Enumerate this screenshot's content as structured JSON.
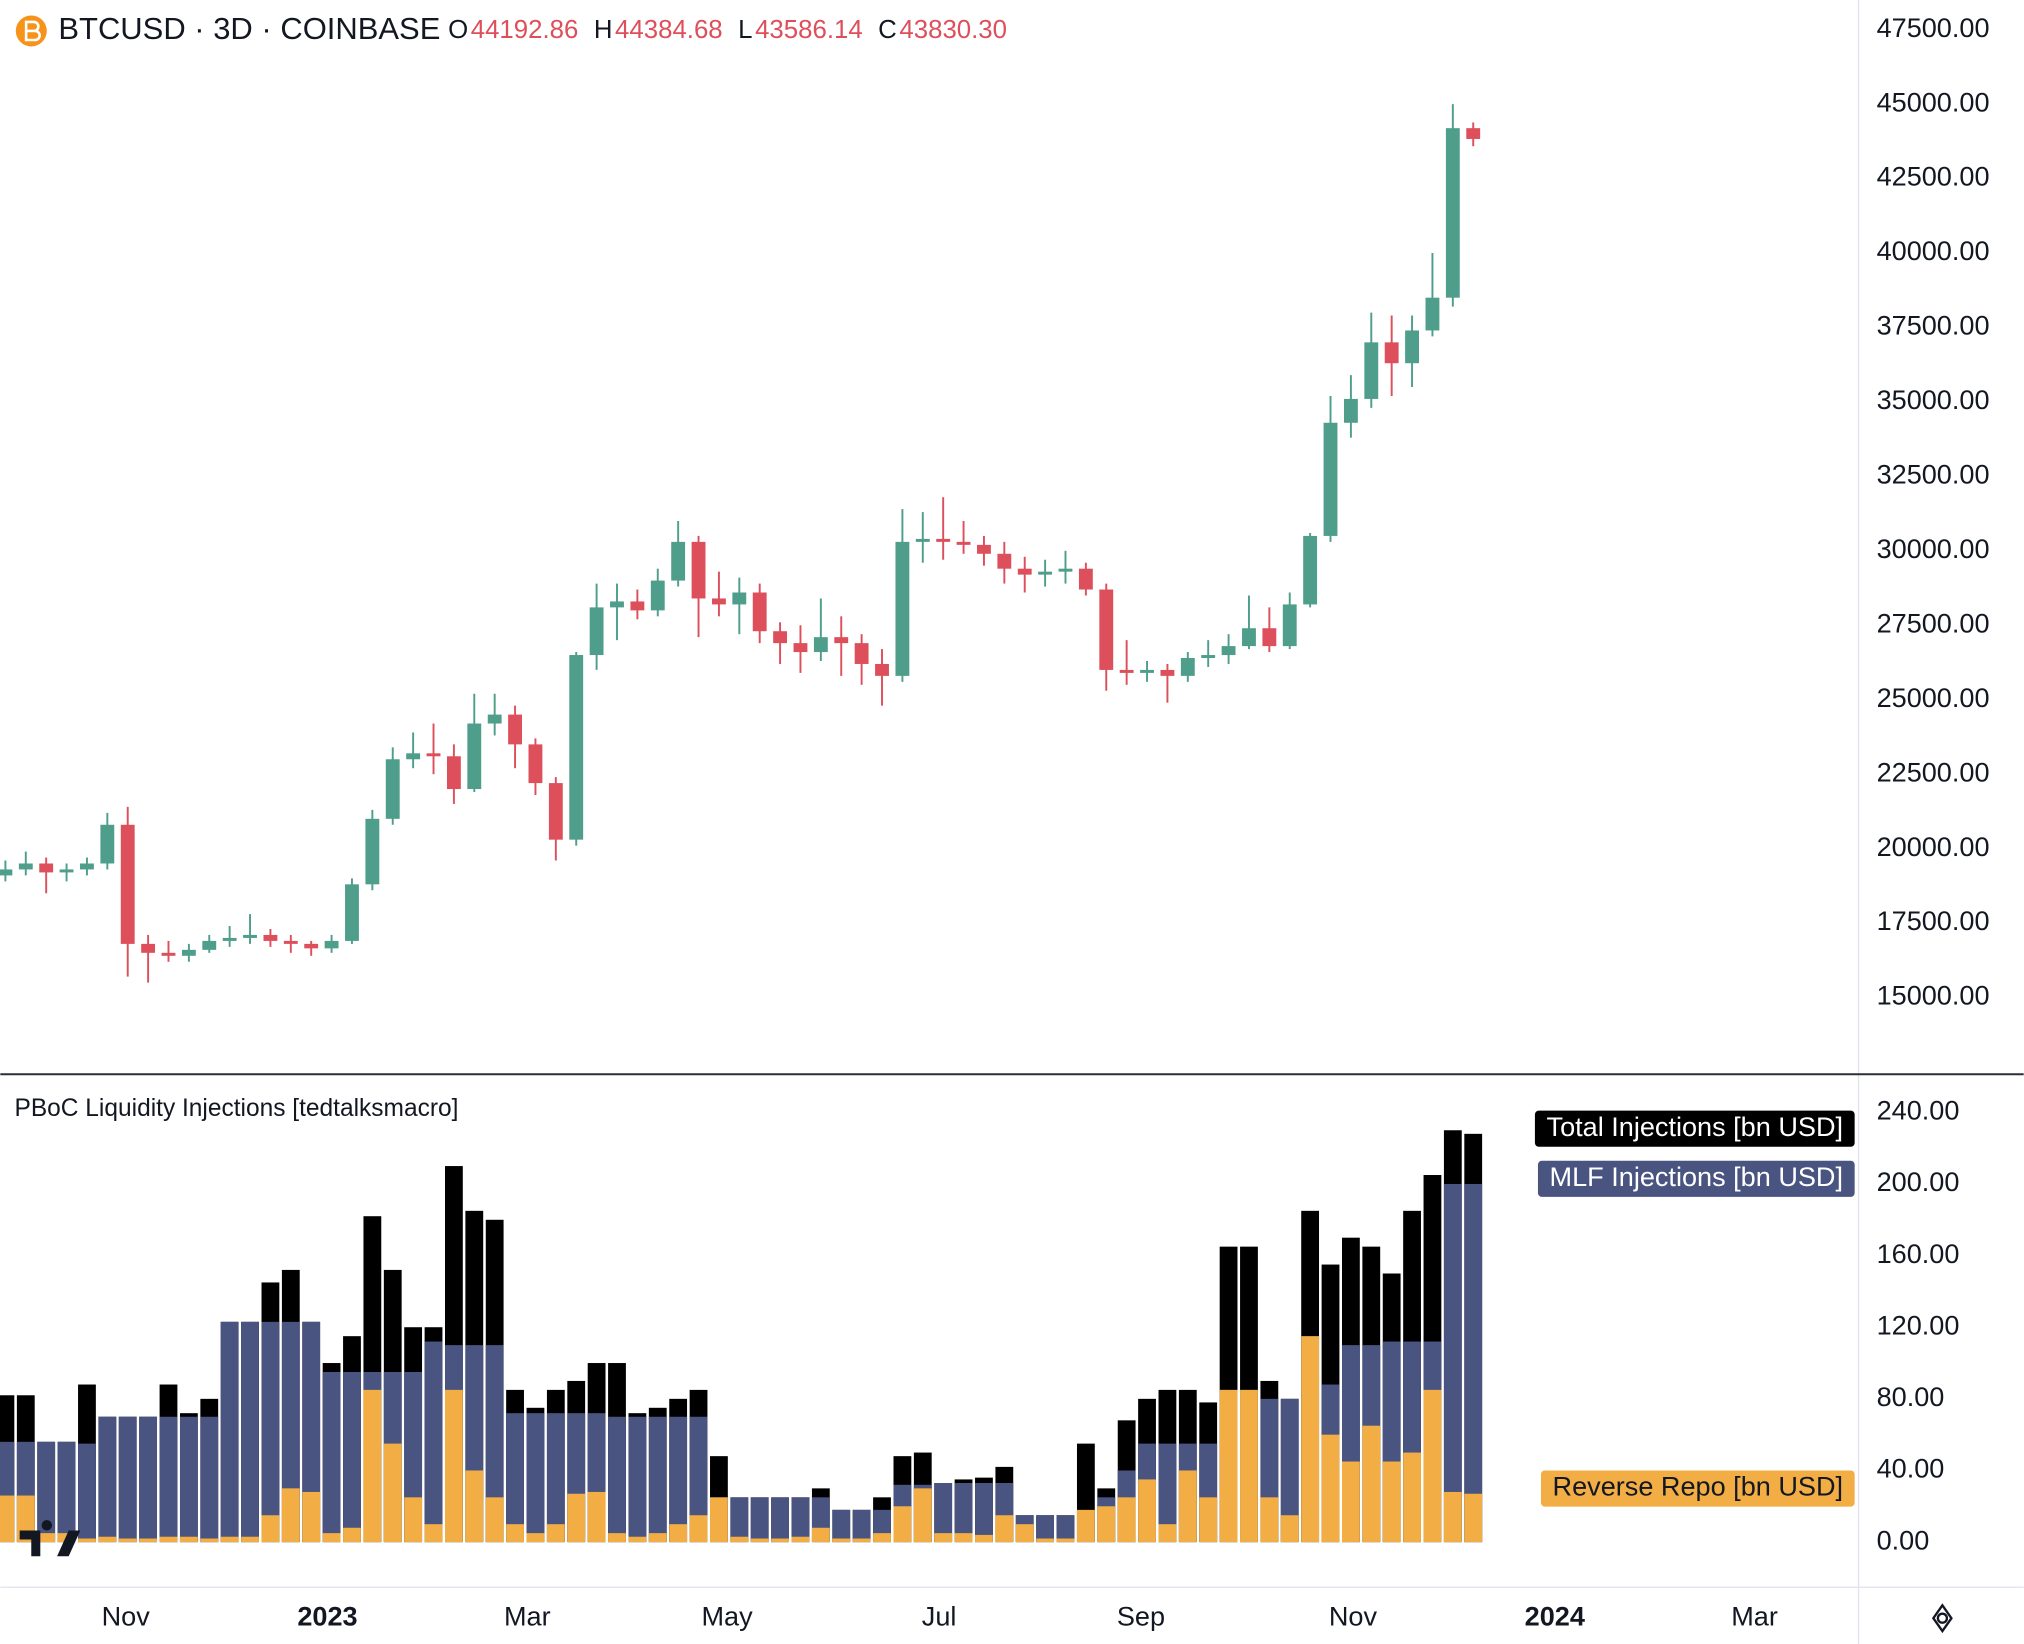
{
  "chart_data": [
    {
      "type": "candlestick",
      "symbol": "BTCUSD · 3D · COINBASE",
      "ohlc_header": {
        "labels": [
          "O",
          "H",
          "L",
          "C"
        ],
        "values": [
          44192.86,
          44384.68,
          43586.14,
          43830.3
        ],
        "value_labels": [
          "44192.86",
          "44384.68",
          "43586.14",
          "43830.30"
        ]
      },
      "up_color": "#4e9e8b",
      "down_color": "#dd4f5b",
      "xlim": [
        -0.25,
        90.9
      ],
      "xticks": [
        {
          "value": 5.9,
          "label": "Nov"
        },
        {
          "value": 15.8,
          "label": "2023"
        },
        {
          "value": 25.6,
          "label": "Mar"
        },
        {
          "value": 35.4,
          "label": "May"
        },
        {
          "value": 45.8,
          "label": "Jul"
        },
        {
          "value": 55.7,
          "label": "Sep"
        },
        {
          "value": 66.1,
          "label": "Nov"
        },
        {
          "value": 76.0,
          "label": "2024"
        },
        {
          "value": 85.8,
          "label": "Mar"
        }
      ],
      "ylim": [
        12443,
        48497
      ],
      "yticks": [
        {
          "value": 15000,
          "label": "15000.00"
        },
        {
          "value": 17500,
          "label": "17500.00"
        },
        {
          "value": 20000,
          "label": "20000.00"
        },
        {
          "value": 22500,
          "label": "22500.00"
        },
        {
          "value": 25000,
          "label": "25000.00"
        },
        {
          "value": 27500,
          "label": "27500.00"
        },
        {
          "value": 30000,
          "label": "30000.00"
        },
        {
          "value": 32500,
          "label": "32500.00"
        },
        {
          "value": 35000,
          "label": "35000.00"
        },
        {
          "value": 37500,
          "label": "37500.00"
        },
        {
          "value": 40000,
          "label": "40000.00"
        },
        {
          "value": 42500,
          "label": "42500.00"
        },
        {
          "value": 45000,
          "label": "45000.00"
        },
        {
          "value": 47500,
          "label": "47500.00"
        }
      ],
      "ohlc": [
        [
          19100,
          19600,
          18900,
          19300
        ],
        [
          19300,
          19900,
          19100,
          19500
        ],
        [
          19500,
          19700,
          18500,
          19200
        ],
        [
          19200,
          19500,
          18900,
          19300
        ],
        [
          19300,
          19700,
          19100,
          19500
        ],
        [
          19500,
          21200,
          19300,
          20800
        ],
        [
          20800,
          21400,
          15700,
          16800
        ],
        [
          16800,
          17100,
          15500,
          16500
        ],
        [
          16500,
          16900,
          16200,
          16400
        ],
        [
          16400,
          16800,
          16200,
          16600
        ],
        [
          16600,
          17100,
          16500,
          16900
        ],
        [
          16900,
          17400,
          16700,
          17000
        ],
        [
          17000,
          17800,
          16800,
          17100
        ],
        [
          17100,
          17300,
          16700,
          16900
        ],
        [
          16900,
          17100,
          16500,
          16800
        ],
        [
          16800,
          16900,
          16400,
          16650
        ],
        [
          16650,
          17100,
          16500,
          16900
        ],
        [
          16900,
          19000,
          16800,
          18800
        ],
        [
          18800,
          21300,
          18600,
          21000
        ],
        [
          21000,
          23400,
          20800,
          23000
        ],
        [
          23000,
          23900,
          22700,
          23200
        ],
        [
          23200,
          24200,
          22500,
          23100
        ],
        [
          23100,
          23500,
          21500,
          22000
        ],
        [
          22000,
          25200,
          21900,
          24200
        ],
        [
          24200,
          25200,
          23800,
          24500
        ],
        [
          24500,
          24800,
          22700,
          23500
        ],
        [
          23500,
          23700,
          21800,
          22200
        ],
        [
          22200,
          22400,
          19600,
          20300
        ],
        [
          20300,
          26600,
          20100,
          26500
        ],
        [
          26500,
          28900,
          26000,
          28100
        ],
        [
          28100,
          28900,
          27000,
          28300
        ],
        [
          28300,
          28700,
          27700,
          28000
        ],
        [
          28000,
          29400,
          27800,
          29000
        ],
        [
          29000,
          31000,
          28800,
          30300
        ],
        [
          30300,
          30500,
          27100,
          28400
        ],
        [
          28400,
          29300,
          27800,
          28200
        ],
        [
          28200,
          29100,
          27200,
          28600
        ],
        [
          28600,
          28900,
          26900,
          27300
        ],
        [
          27300,
          27600,
          26200,
          26900
        ],
        [
          26900,
          27500,
          25900,
          26600
        ],
        [
          26600,
          28400,
          26300,
          27100
        ],
        [
          27100,
          27800,
          25800,
          26900
        ],
        [
          26900,
          27200,
          25500,
          26200
        ],
        [
          26200,
          26700,
          24800,
          25800
        ],
        [
          25800,
          31400,
          25600,
          30300
        ],
        [
          30300,
          31300,
          29600,
          30400
        ],
        [
          30400,
          31800,
          29700,
          30300
        ],
        [
          30300,
          31000,
          29900,
          30200
        ],
        [
          30200,
          30500,
          29500,
          29900
        ],
        [
          29900,
          30300,
          28900,
          29400
        ],
        [
          29400,
          29800,
          28600,
          29200
        ],
        [
          29200,
          29700,
          28800,
          29300
        ],
        [
          29300,
          30000,
          28900,
          29400
        ],
        [
          29400,
          29600,
          28500,
          28700
        ],
        [
          28700,
          28900,
          25300,
          26000
        ],
        [
          26000,
          27000,
          25500,
          25900
        ],
        [
          25900,
          26300,
          25600,
          26000
        ],
        [
          26000,
          26200,
          24900,
          25800
        ],
        [
          25800,
          26600,
          25600,
          26400
        ],
        [
          26400,
          27000,
          26100,
          26500
        ],
        [
          26500,
          27200,
          26200,
          26800
        ],
        [
          26800,
          28500,
          26700,
          27400
        ],
        [
          27400,
          28100,
          26600,
          26800
        ],
        [
          26800,
          28600,
          26700,
          28200
        ],
        [
          28200,
          30600,
          28100,
          30500
        ],
        [
          30500,
          35200,
          30300,
          34300
        ],
        [
          34300,
          35900,
          33800,
          35100
        ],
        [
          35100,
          38000,
          34800,
          37000
        ],
        [
          37000,
          37900,
          35200,
          36300
        ],
        [
          36300,
          37900,
          35500,
          37400
        ],
        [
          37400,
          40000,
          37200,
          38500
        ],
        [
          38500,
          45000,
          38200,
          44192.86
        ],
        [
          44192.86,
          44384.68,
          43586.14,
          43830.3
        ]
      ]
    },
    {
      "type": "bar",
      "barmode": "overlay",
      "title": "PBoC Liquidity Injections [tedtalksmacro]",
      "ylim": [
        -25.2,
        260.9
      ],
      "yticks": [
        {
          "value": 0,
          "label": "0.00"
        },
        {
          "value": 40,
          "label": "40.00"
        },
        {
          "value": 80,
          "label": "80.00"
        },
        {
          "value": 120,
          "label": "120.00"
        },
        {
          "value": 160,
          "label": "160.00"
        },
        {
          "value": 200,
          "label": "200.00"
        },
        {
          "value": 240,
          "label": "240.00"
        }
      ],
      "series": [
        {
          "name": "Total Injections [bn USD]",
          "color": "#000000",
          "text_color": "#ffffff",
          "values": [
            82,
            82,
            56,
            56,
            88,
            70,
            70,
            70,
            88,
            72,
            80,
            123,
            123,
            145,
            152,
            123,
            100,
            115,
            182,
            152,
            120,
            120,
            210,
            185,
            180,
            85,
            75,
            85,
            90,
            100,
            100,
            72,
            75,
            80,
            85,
            48,
            25,
            25,
            25,
            25,
            30,
            18,
            18,
            25,
            48,
            50,
            33,
            35,
            36,
            42,
            15,
            15,
            15,
            55,
            30,
            68,
            80,
            85,
            85,
            78,
            165,
            165,
            90,
            80,
            185,
            155,
            170,
            165,
            150,
            185,
            205,
            230,
            228
          ]
        },
        {
          "name": "MLF Injections [bn USD]",
          "color": "#4a5480",
          "text_color": "#ffffff",
          "values": [
            56,
            56,
            56,
            56,
            55,
            70,
            70,
            70,
            70,
            70,
            70,
            123,
            123,
            123,
            123,
            123,
            95,
            95,
            95,
            95,
            95,
            112,
            110,
            110,
            110,
            72,
            72,
            72,
            72,
            72,
            70,
            70,
            70,
            70,
            70,
            25,
            25,
            25,
            25,
            25,
            25,
            18,
            18,
            18,
            32,
            32,
            33,
            33,
            33,
            33,
            15,
            15,
            15,
            15,
            25,
            40,
            55,
            55,
            55,
            55,
            85,
            85,
            80,
            80,
            115,
            88,
            110,
            110,
            112,
            112,
            112,
            200,
            200
          ]
        },
        {
          "name": "Reverse Repo [bn USD]",
          "color": "#f2ae45",
          "text_color": "#131722",
          "values": [
            26,
            26,
            5,
            5,
            2,
            3,
            2,
            2,
            3,
            3,
            2,
            3,
            3,
            15,
            30,
            28,
            5,
            8,
            85,
            55,
            25,
            10,
            85,
            40,
            25,
            10,
            5,
            10,
            27,
            28,
            5,
            3,
            5,
            10,
            15,
            25,
            3,
            2,
            2,
            3,
            8,
            2,
            2,
            5,
            20,
            30,
            5,
            5,
            4,
            15,
            10,
            2,
            2,
            18,
            20,
            25,
            35,
            10,
            40,
            25,
            85,
            85,
            25,
            15,
            115,
            60,
            45,
            65,
            45,
            50,
            85,
            28,
            27
          ]
        }
      ]
    }
  ]
}
